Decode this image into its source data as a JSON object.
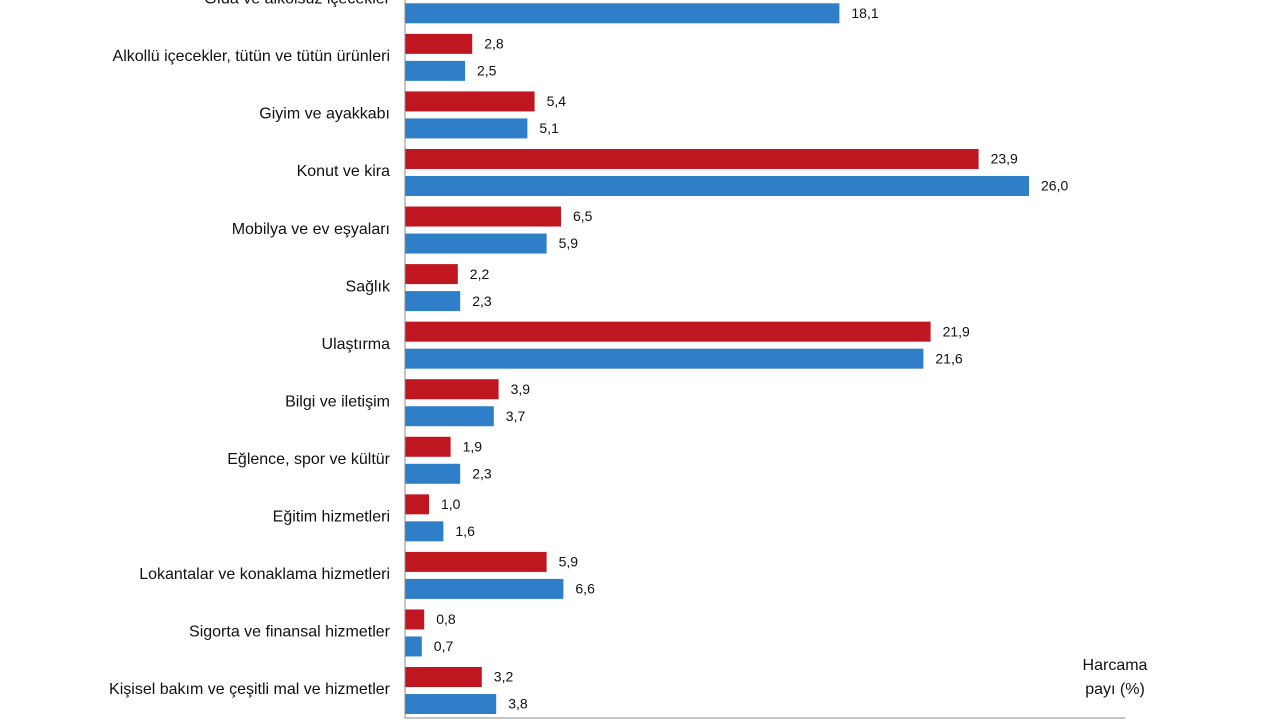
{
  "chart_data": {
    "type": "bar",
    "orientation": "horizontal",
    "categories": [
      "Gıda ve alkolsüz içecekler",
      "Alkollü içecekler, tütün ve tütün ürünleri",
      "Giyim ve ayakkabı",
      "Konut ve kira",
      "Mobilya ve ev eşyaları",
      "Sağlık",
      "Ulaştırma",
      "Bilgi ve iletişim",
      "Eğlence, spor ve kültür",
      "Eğitim hizmetleri",
      "Lokantalar ve konaklama hizmetleri",
      "Sigorta ve finansal hizmetler",
      "Kişisel bakım ve çeşitli mal ve hizmetler"
    ],
    "series": [
      {
        "color": "#c0161f",
        "values": [
          null,
          2.8,
          5.4,
          23.9,
          6.5,
          2.2,
          21.9,
          3.9,
          1.9,
          1.0,
          5.9,
          0.8,
          3.2
        ],
        "value_labels": [
          null,
          "2,8",
          "5,4",
          "23,9",
          "6,5",
          "2,2",
          "21,9",
          "3,9",
          "1,9",
          "1,0",
          "5,9",
          "0,8",
          "3,2"
        ]
      },
      {
        "color": "#2e7fc8",
        "values": [
          18.1,
          2.5,
          5.1,
          26.0,
          5.9,
          2.3,
          21.6,
          3.7,
          2.3,
          1.6,
          6.6,
          0.7,
          3.8
        ],
        "value_labels": [
          "18,1",
          "2,5",
          "5,1",
          "26,0",
          "5,9",
          "2,3",
          "21,6",
          "3,7",
          "2,3",
          "1,6",
          "6,6",
          "0,7",
          "3,8"
        ]
      }
    ],
    "xlim": [
      0,
      30
    ],
    "x_label": [
      "Harcama",
      "payı  (%)"
    ]
  }
}
